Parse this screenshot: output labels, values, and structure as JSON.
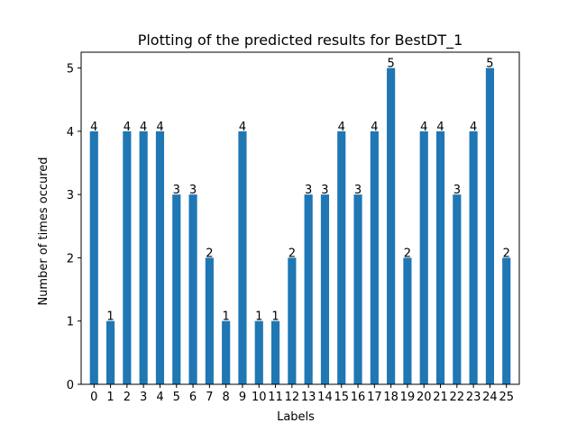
{
  "chart_data": {
    "type": "bar",
    "title": "Plotting of the predicted results for BestDT_1",
    "xlabel": "Labels",
    "ylabel": "Number of times occured",
    "categories": [
      "0",
      "1",
      "2",
      "3",
      "4",
      "5",
      "6",
      "7",
      "8",
      "9",
      "10",
      "11",
      "12",
      "13",
      "14",
      "15",
      "16",
      "17",
      "18",
      "19",
      "20",
      "21",
      "22",
      "23",
      "24",
      "25"
    ],
    "values": [
      4,
      1,
      4,
      4,
      4,
      3,
      3,
      2,
      1,
      4,
      1,
      1,
      2,
      3,
      3,
      4,
      3,
      4,
      5,
      2,
      4,
      4,
      3,
      4,
      5,
      2
    ],
    "ylim": [
      0,
      5.25
    ],
    "yticks": [
      0,
      1,
      2,
      3,
      4,
      5
    ],
    "bar_color": "#1f77b4",
    "grid": false
  }
}
